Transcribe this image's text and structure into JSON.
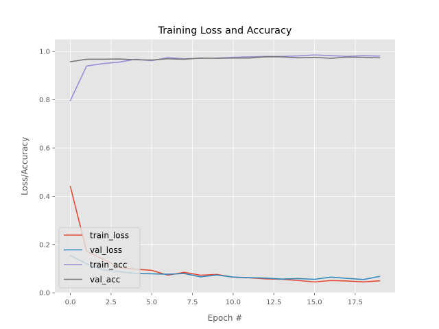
{
  "chart_data": {
    "type": "line",
    "title": "Training Loss and Accuracy",
    "xlabel": "Epoch #",
    "ylabel": "Loss/Accuracy",
    "xlim": [
      -0.95,
      19.95
    ],
    "ylim": [
      0.0,
      1.05
    ],
    "grid": true,
    "legend_position": "lower-left",
    "x_ticks": [
      0.0,
      2.5,
      5.0,
      7.5,
      10.0,
      12.5,
      15.0,
      17.5
    ],
    "x_tick_labels": [
      "0.0",
      "2.5",
      "5.0",
      "7.5",
      "10.0",
      "12.5",
      "15.0",
      "17.5"
    ],
    "y_ticks": [
      0.0,
      0.2,
      0.4,
      0.6,
      0.8,
      1.0
    ],
    "y_tick_labels": [
      "0.0",
      "0.2",
      "0.4",
      "0.6",
      "0.8",
      "1.0"
    ],
    "x": [
      0,
      1,
      2,
      3,
      4,
      5,
      6,
      7,
      8,
      9,
      10,
      11,
      12,
      13,
      14,
      15,
      16,
      17,
      18,
      19
    ],
    "series": [
      {
        "name": "train_loss",
        "color": "#E24A33",
        "values": [
          0.441,
          0.172,
          0.14,
          0.105,
          0.098,
          0.093,
          0.073,
          0.085,
          0.073,
          0.076,
          0.065,
          0.062,
          0.058,
          0.056,
          0.051,
          0.045,
          0.051,
          0.049,
          0.045,
          0.05
        ]
      },
      {
        "name": "val_loss",
        "color": "#348ABD",
        "values": [
          0.155,
          0.12,
          0.095,
          0.088,
          0.08,
          0.079,
          0.077,
          0.08,
          0.066,
          0.074,
          0.065,
          0.063,
          0.061,
          0.057,
          0.059,
          0.056,
          0.065,
          0.06,
          0.055,
          0.068
        ]
      },
      {
        "name": "train_acc",
        "color": "#988ED5",
        "values": [
          0.797,
          0.94,
          0.95,
          0.956,
          0.968,
          0.962,
          0.975,
          0.97,
          0.972,
          0.973,
          0.976,
          0.978,
          0.98,
          0.98,
          0.982,
          0.986,
          0.983,
          0.98,
          0.983,
          0.981
        ]
      },
      {
        "name": "val_acc",
        "color": "#777777",
        "values": [
          0.958,
          0.968,
          0.968,
          0.969,
          0.966,
          0.965,
          0.97,
          0.968,
          0.973,
          0.972,
          0.973,
          0.973,
          0.978,
          0.978,
          0.974,
          0.976,
          0.972,
          0.977,
          0.976,
          0.974
        ]
      }
    ]
  }
}
